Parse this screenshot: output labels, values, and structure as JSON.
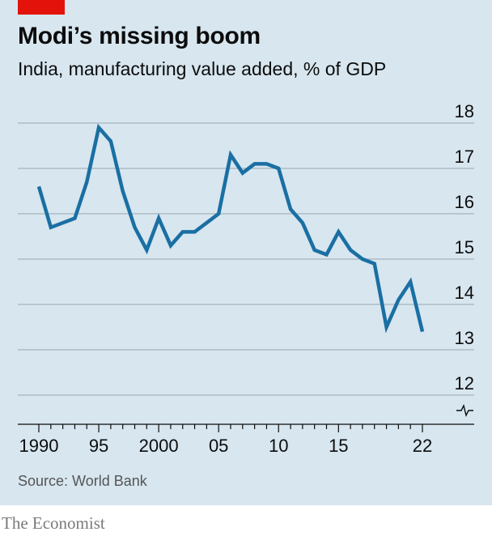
{
  "header": {
    "title": "Modi’s missing boom",
    "subtitle": "India, manufacturing value added, % of GDP"
  },
  "footer": {
    "source": "Source: World Bank",
    "brand": "The Economist"
  },
  "colors": {
    "panel_bg": "#d7e6ef",
    "line": "#1a6fa3",
    "grid": "#9aa7b0",
    "accent": "#e3120b"
  },
  "chart_data": {
    "type": "line",
    "title": "Modi’s missing boom",
    "subtitle": "India, manufacturing value added, % of GDP",
    "xlabel": "",
    "ylabel": "",
    "xlim": [
      1990,
      2022
    ],
    "ylim": [
      12,
      18
    ],
    "axis_break": true,
    "grid": "horizontal",
    "y_ticks": [
      12,
      13,
      14,
      15,
      16,
      17,
      18
    ],
    "x_ticks": [
      {
        "value": 1990,
        "label": "1990"
      },
      {
        "value": 1995,
        "label": "95"
      },
      {
        "value": 2000,
        "label": "2000"
      },
      {
        "value": 2005,
        "label": "05"
      },
      {
        "value": 2010,
        "label": "10"
      },
      {
        "value": 2015,
        "label": "15"
      },
      {
        "value": 2022,
        "label": "22"
      }
    ],
    "x": [
      1990,
      1991,
      1992,
      1993,
      1994,
      1995,
      1996,
      1997,
      1998,
      1999,
      2000,
      2001,
      2002,
      2003,
      2004,
      2005,
      2006,
      2007,
      2008,
      2009,
      2010,
      2011,
      2012,
      2013,
      2014,
      2015,
      2016,
      2017,
      2018,
      2019,
      2020,
      2021,
      2022
    ],
    "series": [
      {
        "values": [
          16.6,
          15.7,
          15.8,
          15.9,
          16.7,
          17.9,
          17.6,
          16.5,
          15.7,
          15.2,
          15.9,
          15.3,
          15.6,
          15.6,
          15.8,
          16.0,
          17.3,
          16.9,
          17.1,
          17.1,
          17.0,
          16.1,
          15.8,
          15.2,
          15.1,
          15.6,
          15.2,
          15.0,
          14.9,
          13.5,
          14.1,
          14.5,
          13.4
        ]
      }
    ]
  }
}
